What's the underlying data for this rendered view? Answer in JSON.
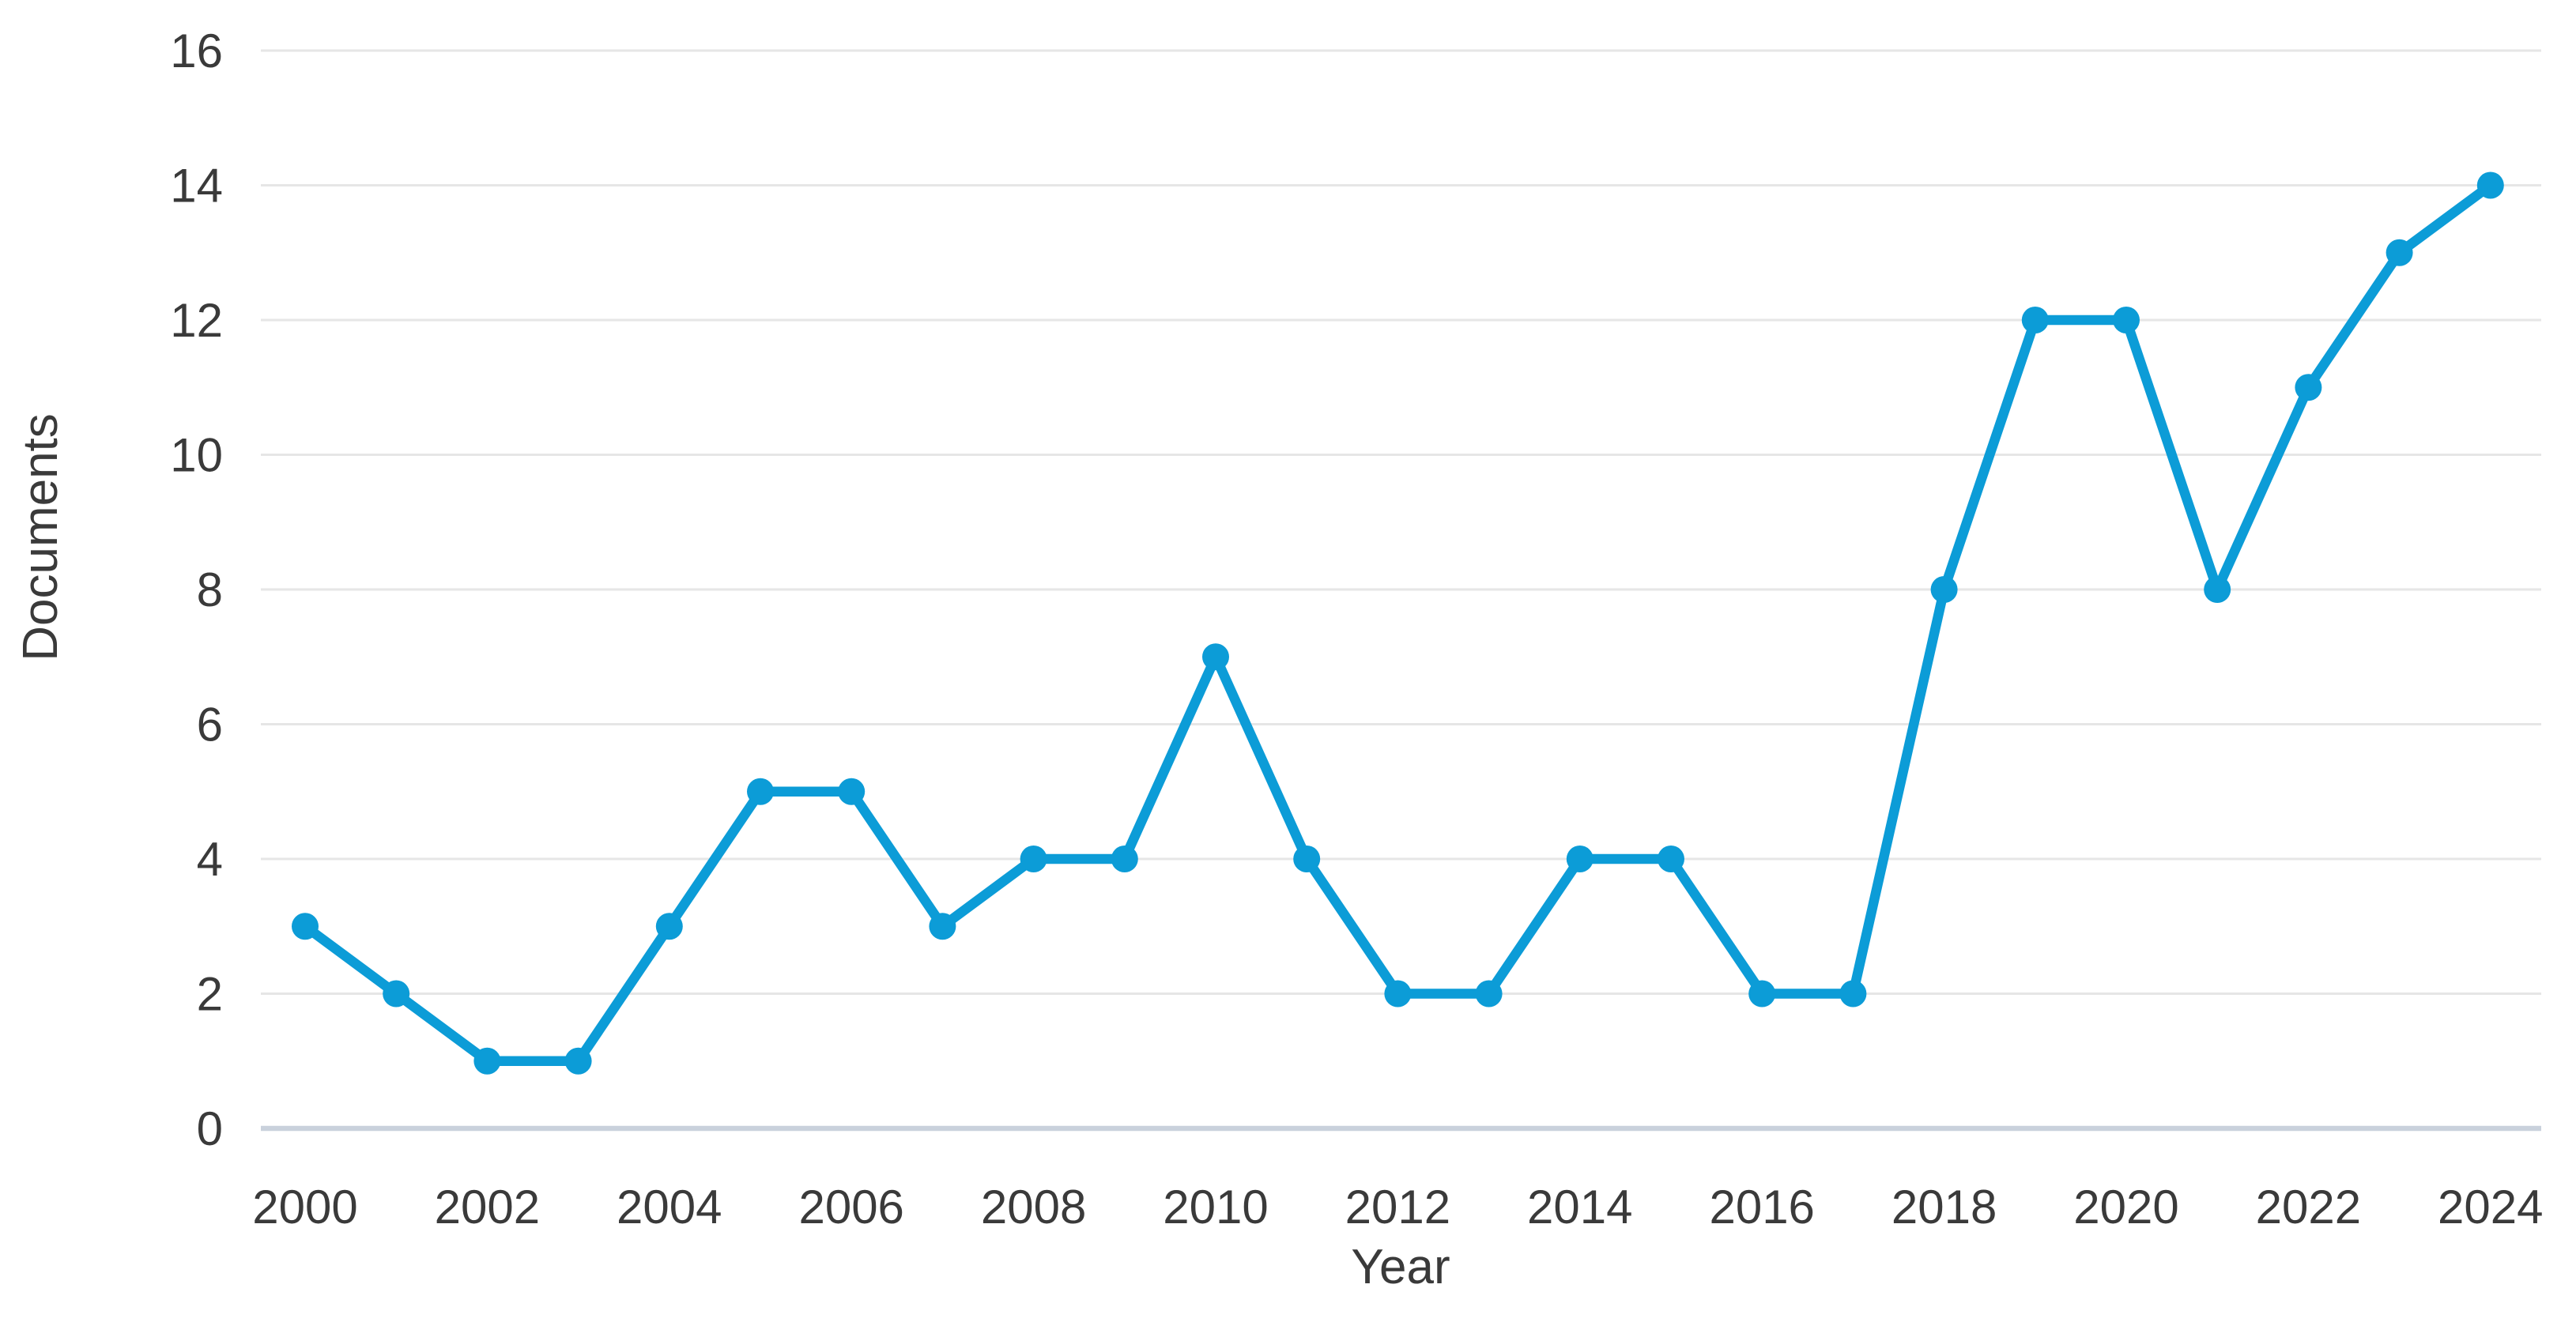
{
  "chart": {
    "title": "",
    "y_axis_title": "Documents",
    "x_axis_title": "Year"
  },
  "chart_data": {
    "type": "line",
    "x": [
      2000,
      2001,
      2002,
      2003,
      2004,
      2005,
      2006,
      2007,
      2008,
      2009,
      2010,
      2011,
      2012,
      2013,
      2014,
      2015,
      2016,
      2017,
      2018,
      2019,
      2020,
      2021,
      2022,
      2023,
      2024
    ],
    "series": [
      {
        "name": "Documents",
        "values": [
          3,
          2,
          1,
          1,
          3,
          5,
          5,
          3,
          4,
          4,
          7,
          4,
          2,
          2,
          4,
          4,
          2,
          2,
          8,
          12,
          12,
          8,
          11,
          13,
          14
        ]
      }
    ],
    "title": "",
    "xlabel": "Year",
    "ylabel": "Documents",
    "ylim": [
      0,
      16
    ],
    "ytick_step": 2,
    "ytick_labels": [
      "0",
      "2",
      "4",
      "6",
      "8",
      "10",
      "12",
      "14",
      "16"
    ],
    "xtick_labels": [
      "2000",
      "2002",
      "2004",
      "2006",
      "2008",
      "2010",
      "2012",
      "2014",
      "2016",
      "2018",
      "2020",
      "2022",
      "2024"
    ],
    "grid": "horizontal",
    "legend": "none",
    "line_color": "#0c9cd7",
    "marker_color": "#0c9cd7",
    "gridline_color": "#e6e6e6",
    "zero_axis_color": "#c9d1dc",
    "tick_text_color": "#3a3a3a",
    "background_color": "#ffffff"
  }
}
